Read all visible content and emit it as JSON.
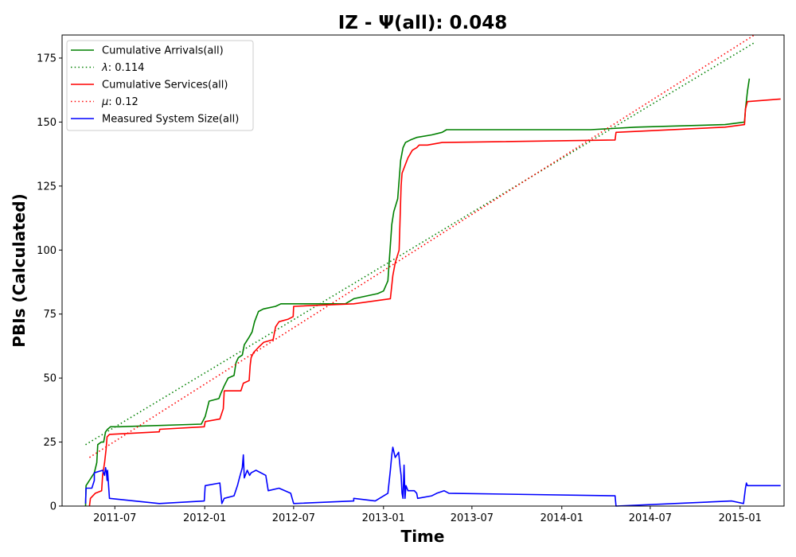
{
  "chart_data": {
    "type": "line",
    "title": "IZ -  Ψ(all): 0.048",
    "xlabel": "Time",
    "ylabel": "PBIs (Calculated)",
    "xlim": [
      "2011-03-15",
      "2015-04-01"
    ],
    "ylim": [
      0,
      184
    ],
    "x_tick_labels": [
      "2011-07",
      "2012-01",
      "2012-07",
      "2013-01",
      "2013-07",
      "2014-01",
      "2014-07",
      "2015-01"
    ],
    "y_tick_labels": [
      "0",
      "25",
      "50",
      "75",
      "100",
      "125",
      "150",
      "175"
    ],
    "y_ticks": [
      0,
      25,
      50,
      75,
      100,
      125,
      150,
      175
    ],
    "grid": false,
    "legend_position": "top-left",
    "series": [
      {
        "name": "Cumulative Arrivals(all)",
        "color": "#008000",
        "style": "solid",
        "points": [
          [
            "2011-05-02",
            0
          ],
          [
            "2011-05-03",
            8
          ],
          [
            "2011-05-20",
            13
          ],
          [
            "2011-05-25",
            17
          ],
          [
            "2011-05-27",
            24
          ],
          [
            "2011-06-03",
            25
          ],
          [
            "2011-06-08",
            25
          ],
          [
            "2011-06-12",
            29
          ],
          [
            "2011-06-16",
            30
          ],
          [
            "2011-06-22",
            31
          ],
          [
            "2011-07-10",
            31
          ],
          [
            "2011-12-25",
            32
          ],
          [
            "2012-01-02",
            35
          ],
          [
            "2012-01-10",
            41
          ],
          [
            "2012-01-30",
            42
          ],
          [
            "2012-02-03",
            44
          ],
          [
            "2012-02-10",
            47
          ],
          [
            "2012-02-18",
            50
          ],
          [
            "2012-03-01",
            51
          ],
          [
            "2012-03-05",
            56
          ],
          [
            "2012-03-10",
            58
          ],
          [
            "2012-03-18",
            59
          ],
          [
            "2012-03-22",
            63
          ],
          [
            "2012-04-01",
            66
          ],
          [
            "2012-04-07",
            68
          ],
          [
            "2012-04-12",
            72
          ],
          [
            "2012-04-20",
            76
          ],
          [
            "2012-04-30",
            77
          ],
          [
            "2012-05-25",
            78
          ],
          [
            "2012-06-05",
            79
          ],
          [
            "2012-10-15",
            79
          ],
          [
            "2012-11-01",
            81
          ],
          [
            "2012-12-20",
            83
          ],
          [
            "2013-01-01",
            84
          ],
          [
            "2013-01-10",
            88
          ],
          [
            "2013-01-18",
            110
          ],
          [
            "2013-01-22",
            115
          ],
          [
            "2013-01-30",
            120
          ],
          [
            "2013-02-05",
            135
          ],
          [
            "2013-02-10",
            140
          ],
          [
            "2013-02-15",
            142
          ],
          [
            "2013-02-25",
            143
          ],
          [
            "2013-03-10",
            144
          ],
          [
            "2013-04-10",
            145
          ],
          [
            "2013-05-01",
            146
          ],
          [
            "2013-05-10",
            147
          ],
          [
            "2014-03-01",
            147
          ],
          [
            "2014-06-01",
            148
          ],
          [
            "2014-12-01",
            149
          ],
          [
            "2015-01-10",
            150
          ],
          [
            "2015-01-12",
            155
          ],
          [
            "2015-01-16",
            162
          ],
          [
            "2015-01-20",
            167
          ]
        ]
      },
      {
        "name": "λ: 0.114",
        "color": "#008000",
        "style": "dotted",
        "points": [
          [
            "2011-05-02",
            24
          ],
          [
            "2015-01-30",
            181
          ]
        ]
      },
      {
        "name": "Cumulative Services(all)",
        "color": "#ff0000",
        "style": "solid",
        "points": [
          [
            "2011-05-10",
            0
          ],
          [
            "2011-05-12",
            3
          ],
          [
            "2011-05-22",
            5
          ],
          [
            "2011-06-04",
            6
          ],
          [
            "2011-06-06",
            12
          ],
          [
            "2011-06-10",
            17
          ],
          [
            "2011-06-13",
            22
          ],
          [
            "2011-06-15",
            27
          ],
          [
            "2011-06-20",
            28
          ],
          [
            "2011-09-30",
            29
          ],
          [
            "2011-10-01",
            30
          ],
          [
            "2011-12-31",
            31
          ],
          [
            "2012-01-02",
            33
          ],
          [
            "2012-02-01",
            34
          ],
          [
            "2012-02-08",
            38
          ],
          [
            "2012-02-10",
            45
          ],
          [
            "2012-03-15",
            45
          ],
          [
            "2012-03-20",
            48
          ],
          [
            "2012-04-01",
            49
          ],
          [
            "2012-04-03",
            55
          ],
          [
            "2012-04-05",
            58
          ],
          [
            "2012-04-10",
            60
          ],
          [
            "2012-04-20",
            62
          ],
          [
            "2012-05-01",
            64
          ],
          [
            "2012-05-20",
            65
          ],
          [
            "2012-05-25",
            70
          ],
          [
            "2012-06-01",
            72
          ],
          [
            "2012-06-20",
            73
          ],
          [
            "2012-06-30",
            74
          ],
          [
            "2012-07-01",
            78
          ],
          [
            "2012-11-01",
            79
          ],
          [
            "2013-01-15",
            81
          ],
          [
            "2013-01-20",
            90
          ],
          [
            "2013-01-25",
            95
          ],
          [
            "2013-02-02",
            100
          ],
          [
            "2013-02-06",
            125
          ],
          [
            "2013-02-08",
            130
          ],
          [
            "2013-02-20",
            136
          ],
          [
            "2013-03-01",
            139
          ],
          [
            "2013-03-10",
            140
          ],
          [
            "2013-03-15",
            141
          ],
          [
            "2013-04-01",
            141
          ],
          [
            "2013-05-01",
            142
          ],
          [
            "2014-04-20",
            143
          ],
          [
            "2014-04-22",
            146
          ],
          [
            "2014-12-01",
            148
          ],
          [
            "2015-01-10",
            149
          ],
          [
            "2015-01-12",
            155
          ],
          [
            "2015-01-16",
            158
          ],
          [
            "2015-03-25",
            159
          ]
        ]
      },
      {
        "name": "μ: 0.12",
        "color": "#ff0000",
        "style": "dotted",
        "points": [
          [
            "2011-05-10",
            19
          ],
          [
            "2015-01-30",
            184
          ]
        ]
      },
      {
        "name": "Measured System Size(all)",
        "color": "#0000ff",
        "style": "solid",
        "points": [
          [
            "2011-05-02",
            1
          ],
          [
            "2011-05-03",
            7
          ],
          [
            "2011-05-15",
            7
          ],
          [
            "2011-05-20",
            10
          ],
          [
            "2011-05-20",
            13
          ],
          [
            "2011-06-06",
            14
          ],
          [
            "2011-06-10",
            12
          ],
          [
            "2011-06-12",
            15
          ],
          [
            "2011-06-14",
            13
          ],
          [
            "2011-06-15",
            10
          ],
          [
            "2011-06-16",
            14
          ],
          [
            "2011-06-20",
            3
          ],
          [
            "2011-09-30",
            1
          ],
          [
            "2011-12-31",
            2
          ],
          [
            "2012-01-02",
            8
          ],
          [
            "2012-02-01",
            9
          ],
          [
            "2012-02-05",
            1
          ],
          [
            "2012-02-10",
            3
          ],
          [
            "2012-03-01",
            4
          ],
          [
            "2012-03-08",
            8
          ],
          [
            "2012-03-12",
            11
          ],
          [
            "2012-03-18",
            15
          ],
          [
            "2012-03-20",
            20
          ],
          [
            "2012-03-22",
            11
          ],
          [
            "2012-03-28",
            14
          ],
          [
            "2012-04-02",
            12
          ],
          [
            "2012-04-05",
            13
          ],
          [
            "2012-04-15",
            14
          ],
          [
            "2012-05-05",
            12
          ],
          [
            "2012-05-10",
            6
          ],
          [
            "2012-06-01",
            7
          ],
          [
            "2012-06-25",
            5
          ],
          [
            "2012-07-01",
            1
          ],
          [
            "2012-11-01",
            2
          ],
          [
            "2012-11-01",
            3
          ],
          [
            "2012-12-15",
            2
          ],
          [
            "2013-01-10",
            5
          ],
          [
            "2013-01-15",
            14
          ],
          [
            "2013-01-18",
            20
          ],
          [
            "2013-01-20",
            23
          ],
          [
            "2013-01-25",
            19
          ],
          [
            "2013-02-01",
            21
          ],
          [
            "2013-02-04",
            15
          ],
          [
            "2013-02-06",
            12
          ],
          [
            "2013-02-08",
            5
          ],
          [
            "2013-02-10",
            3
          ],
          [
            "2013-02-12",
            16
          ],
          [
            "2013-02-14",
            3
          ],
          [
            "2013-02-16",
            8
          ],
          [
            "2013-02-20",
            6
          ],
          [
            "2013-03-05",
            6
          ],
          [
            "2013-03-10",
            5
          ],
          [
            "2013-03-12",
            3
          ],
          [
            "2013-04-10",
            4
          ],
          [
            "2013-04-20",
            5
          ],
          [
            "2013-05-05",
            6
          ],
          [
            "2013-05-15",
            5
          ],
          [
            "2014-04-20",
            4
          ],
          [
            "2014-04-22",
            0
          ],
          [
            "2014-12-15",
            2
          ],
          [
            "2015-01-08",
            1
          ],
          [
            "2015-01-12",
            7
          ],
          [
            "2015-01-14",
            9
          ],
          [
            "2015-01-16",
            8
          ],
          [
            "2015-03-25",
            8
          ]
        ]
      }
    ]
  }
}
